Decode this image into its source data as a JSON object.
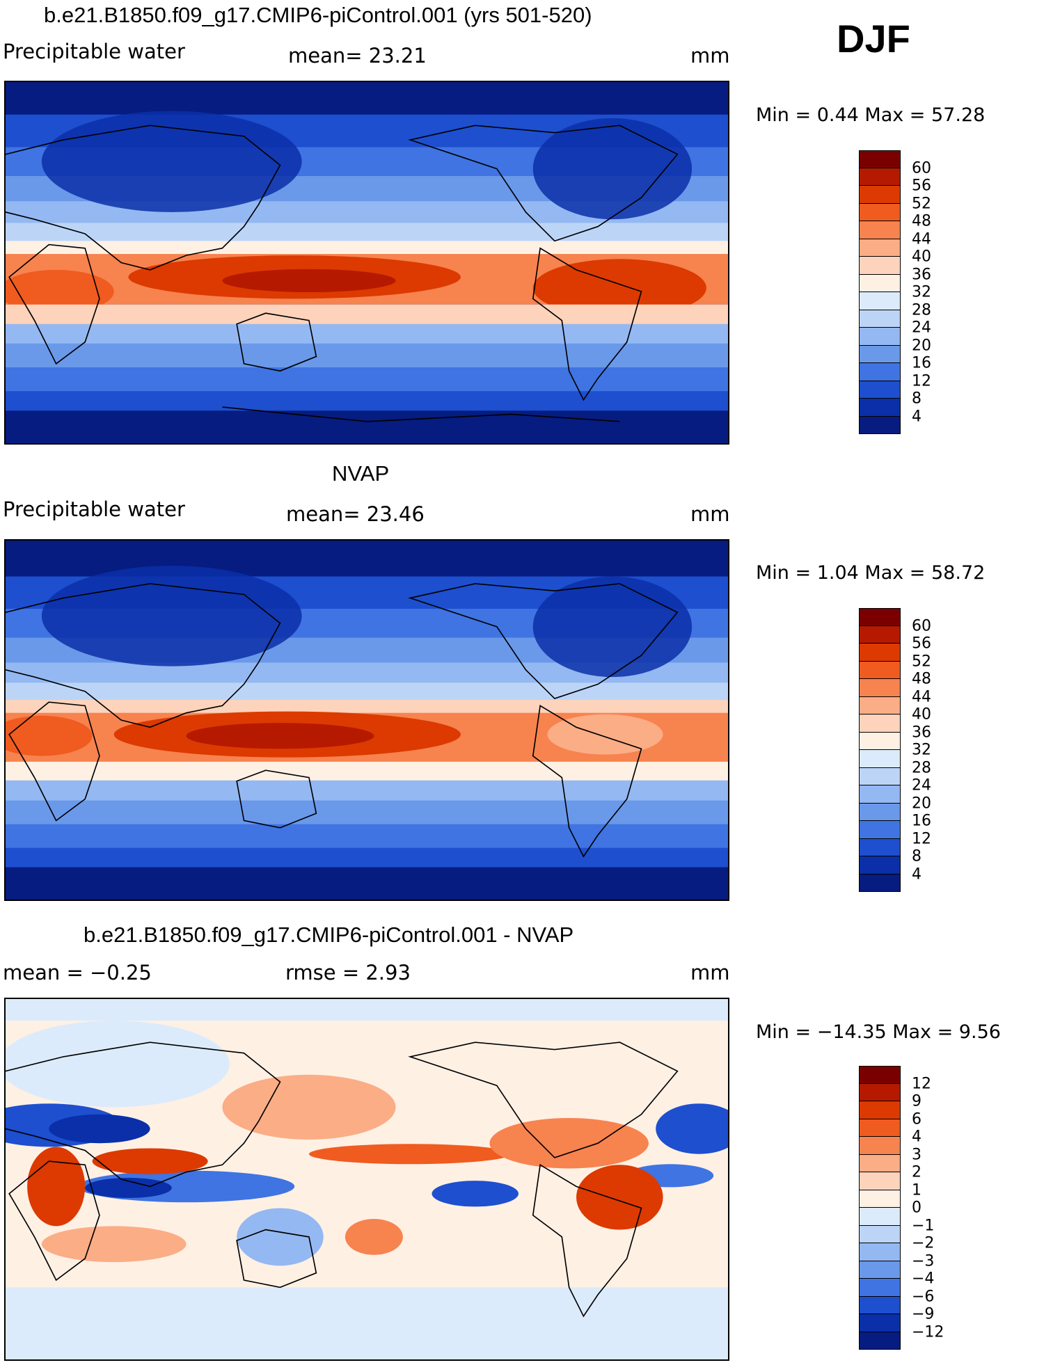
{
  "season": "DJF",
  "panels": [
    {
      "title": "b.e21.B1850.f09_g17.CMIP6-piControl.001 (yrs 501-520)",
      "left_text": "Precipitable water",
      "middle_text": "mean=   23.21",
      "units": "mm",
      "min_max": "Min =    0.44 Max =   57.28",
      "colorbar_labels": [
        "60",
        "56",
        "52",
        "48",
        "44",
        "40",
        "36",
        "32",
        "28",
        "24",
        "20",
        "16",
        "12",
        "8",
        "4"
      ],
      "colorbar_colors": [
        "#7a0000",
        "#b51a00",
        "#dc3a00",
        "#f05b20",
        "#f7834f",
        "#fbad86",
        "#fdd3bb",
        "#fff0e4",
        "#dcebfb",
        "#bcd5f7",
        "#94b8f2",
        "#6a99ea",
        "#3f74e2",
        "#1d4fcf",
        "#0a2fa8",
        "#061c80"
      ]
    },
    {
      "title": "NVAP",
      "left_text": "Precipitable water",
      "middle_text": "mean=   23.46",
      "units": "mm",
      "min_max": "Min =    1.04 Max =   58.72",
      "colorbar_labels": [
        "60",
        "56",
        "52",
        "48",
        "44",
        "40",
        "36",
        "32",
        "28",
        "24",
        "20",
        "16",
        "12",
        "8",
        "4"
      ],
      "colorbar_colors": [
        "#7a0000",
        "#b51a00",
        "#dc3a00",
        "#f05b20",
        "#f7834f",
        "#fbad86",
        "#fdd3bb",
        "#fff0e4",
        "#dcebfb",
        "#bcd5f7",
        "#94b8f2",
        "#6a99ea",
        "#3f74e2",
        "#1d4fcf",
        "#0a2fa8",
        "#061c80"
      ]
    },
    {
      "title": "b.e21.B1850.f09_g17.CMIP6-piControl.001 - NVAP",
      "left_text": "mean =   −0.25",
      "middle_text": "rmse =    2.93",
      "units": "mm",
      "min_max": "Min = −14.35 Max =    9.56",
      "colorbar_labels": [
        "12",
        "9",
        "6",
        "4",
        "3",
        "2",
        "1",
        "0",
        "−1",
        "−2",
        "−3",
        "−4",
        "−6",
        "−9",
        "−12"
      ],
      "colorbar_colors": [
        "#7a0000",
        "#b51a00",
        "#dc3a00",
        "#f05b20",
        "#f7834f",
        "#fbad86",
        "#fdd3bb",
        "#fff0e4",
        "#dcebfb",
        "#bcd5f7",
        "#94b8f2",
        "#6a99ea",
        "#3f74e2",
        "#1d4fcf",
        "#0a2fa8",
        "#061c80"
      ]
    }
  ]
}
